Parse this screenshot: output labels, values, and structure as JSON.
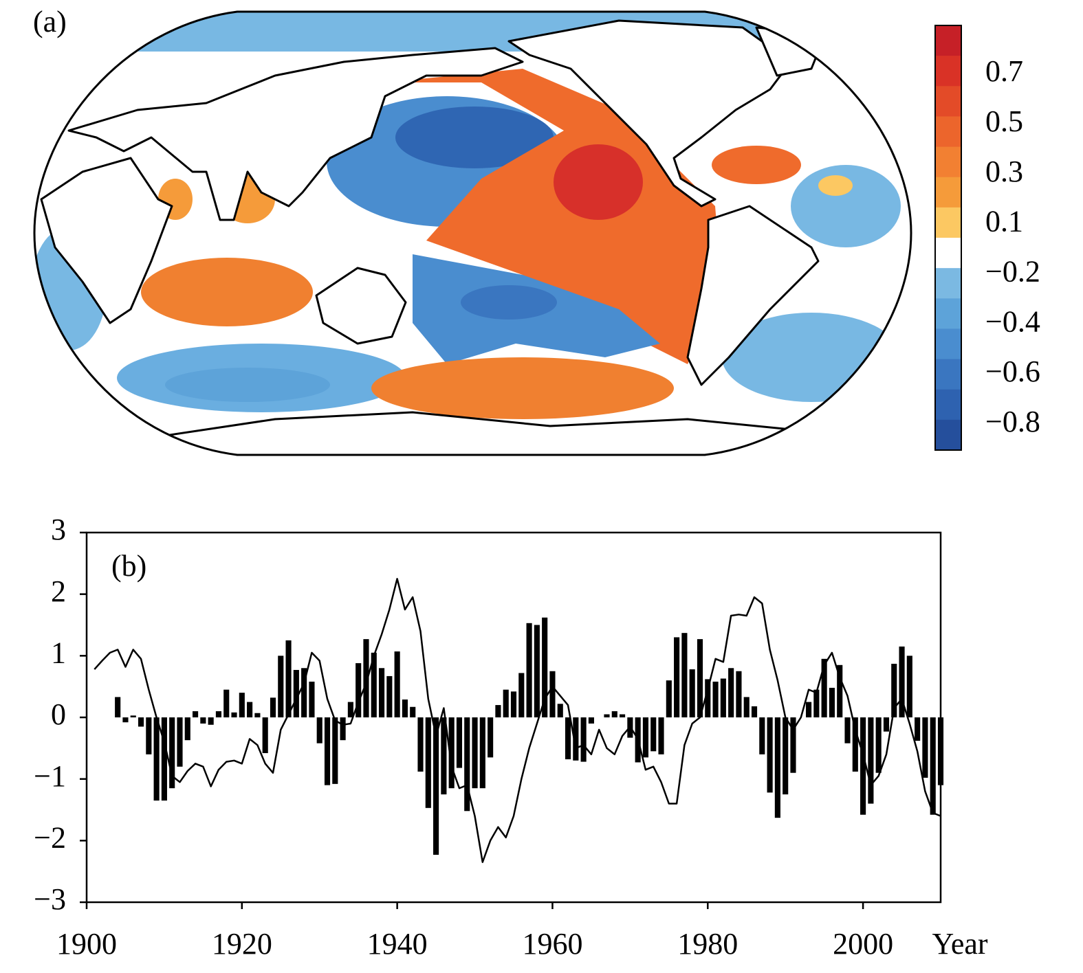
{
  "chart_data": [
    {
      "type": "map",
      "annotation": "(a)",
      "colorbar": {
        "colors": [
          "#c62027",
          "#d93226",
          "#e34b28",
          "#ec652c",
          "#f28032",
          "#f59b3a",
          "#fcc862",
          "#ffffff",
          "#7bb9e2",
          "#5da3d9",
          "#4a8dcf",
          "#3a76c0",
          "#2e62b0",
          "#254f9c"
        ],
        "ticks": [
          0.7,
          0.5,
          0.3,
          0.1,
          {
            "value": -0.2,
            "label": "−0.2"
          },
          {
            "value": -0.4,
            "label": "−0.4"
          },
          {
            "value": -0.6,
            "label": "−0.6"
          },
          {
            "value": -0.8,
            "label": "−0.8"
          }
        ]
      }
    },
    {
      "type": "bar",
      "annotation": "(b)",
      "xlabel": "Year",
      "x": [
        1901,
        1902,
        1903,
        1904,
        1905,
        1906,
        1907,
        1908,
        1909,
        1910,
        1911,
        1912,
        1913,
        1914,
        1915,
        1916,
        1917,
        1918,
        1919,
        1920,
        1921,
        1922,
        1923,
        1924,
        1925,
        1926,
        1927,
        1928,
        1929,
        1930,
        1931,
        1932,
        1933,
        1934,
        1935,
        1936,
        1937,
        1938,
        1939,
        1940,
        1941,
        1942,
        1943,
        1944,
        1945,
        1946,
        1947,
        1948,
        1949,
        1950,
        1951,
        1952,
        1953,
        1954,
        1955,
        1956,
        1957,
        1958,
        1959,
        1960,
        1961,
        1962,
        1963,
        1964,
        1965,
        1966,
        1967,
        1968,
        1969,
        1970,
        1971,
        1972,
        1973,
        1974,
        1975,
        1976,
        1977,
        1978,
        1979,
        1980,
        1981,
        1982,
        1983,
        1984,
        1985,
        1986,
        1987,
        1988,
        1989,
        1990,
        1991,
        1992,
        1993,
        1994,
        1995,
        1996,
        1997,
        1998,
        1999,
        2000,
        2001,
        2002,
        2003,
        2004,
        2005,
        2006,
        2007,
        2008,
        2009,
        2010
      ],
      "series": [
        {
          "type": "bar",
          "color": "#000000",
          "values": [
            null,
            null,
            null,
            0.33,
            -0.08,
            0.03,
            -0.15,
            -0.6,
            -1.35,
            -1.35,
            -1.15,
            -0.8,
            -0.37,
            0.1,
            -0.1,
            -0.12,
            0.1,
            0.45,
            0.08,
            0.4,
            0.25,
            0.07,
            -0.58,
            0.32,
            1.0,
            1.25,
            0.77,
            0.8,
            0.58,
            -0.42,
            -1.1,
            -1.08,
            -0.37,
            0.25,
            0.88,
            1.27,
            1.05,
            0.8,
            0.67,
            1.07,
            0.29,
            0.17,
            -0.88,
            -1.47,
            -2.23,
            -1.25,
            -1.15,
            -0.82,
            -1.52,
            -1.15,
            -1.15,
            -0.65,
            0.2,
            0.45,
            0.42,
            0.72,
            1.53,
            1.5,
            1.62,
            0.75,
            0.22,
            -0.68,
            -0.7,
            -0.72,
            -0.1,
            0.0,
            0.05,
            0.1,
            0.05,
            -0.33,
            -0.73,
            -0.65,
            -0.55,
            -0.6,
            0.6,
            1.3,
            1.37,
            0.78,
            1.27,
            0.62,
            0.58,
            0.63,
            0.8,
            0.75,
            0.33,
            0.18,
            -0.6,
            -1.22,
            -1.63,
            -1.25,
            -0.9,
            0.0,
            0.25,
            0.45,
            0.95,
            0.48,
            0.85,
            -0.42,
            -0.88,
            -1.58,
            -1.4,
            -0.9,
            -0.23,
            0.87,
            1.15,
            1.0,
            -0.38,
            -0.98,
            -1.58,
            -1.1
          ]
        },
        {
          "type": "line",
          "color": "#000000",
          "values": [
            0.78,
            0.92,
            1.05,
            1.1,
            0.82,
            1.1,
            0.95,
            0.45,
            0.0,
            -0.4,
            -0.95,
            -1.05,
            -0.87,
            -0.75,
            -0.8,
            -1.12,
            -0.85,
            -0.72,
            -0.7,
            -0.75,
            -0.35,
            -0.45,
            -0.75,
            -0.9,
            -0.2,
            0.05,
            0.3,
            0.55,
            1.05,
            0.92,
            0.3,
            -0.05,
            -0.12,
            -0.1,
            0.25,
            0.55,
            1.0,
            1.35,
            1.75,
            2.25,
            1.75,
            1.95,
            1.4,
            0.3,
            -0.3,
            0.15,
            -0.8,
            -1.15,
            -1.1,
            -1.6,
            -2.35,
            -2.0,
            -1.78,
            -1.95,
            -1.6,
            -1.0,
            -0.5,
            -0.1,
            0.3,
            0.5,
            0.35,
            0.2,
            -0.5,
            -0.45,
            -0.6,
            -0.2,
            -0.5,
            -0.6,
            -0.3,
            -0.15,
            -0.35,
            -0.85,
            -0.8,
            -1.05,
            -1.4,
            -1.4,
            -0.45,
            -0.1,
            0.0,
            0.45,
            0.95,
            0.9,
            1.65,
            1.67,
            1.65,
            1.95,
            1.85,
            1.1,
            0.6,
            0.0,
            -0.2,
            0.0,
            0.45,
            0.4,
            0.85,
            1.05,
            0.65,
            0.35,
            -0.2,
            -0.6,
            -1.1,
            -0.95,
            -0.6,
            0.15,
            0.3,
            -0.1,
            -0.55,
            -1.2,
            -1.55,
            -1.6
          ]
        }
      ],
      "xlim": [
        1900,
        2010
      ],
      "ylim": [
        -3,
        3
      ],
      "xticks": [
        1900,
        1920,
        1940,
        1960,
        1980,
        2000
      ],
      "yticks": [
        {
          "value": -3,
          "label": "−3"
        },
        {
          "value": -2,
          "label": "−2"
        },
        {
          "value": -1,
          "label": "−1"
        },
        0,
        1,
        2,
        3
      ]
    }
  ]
}
